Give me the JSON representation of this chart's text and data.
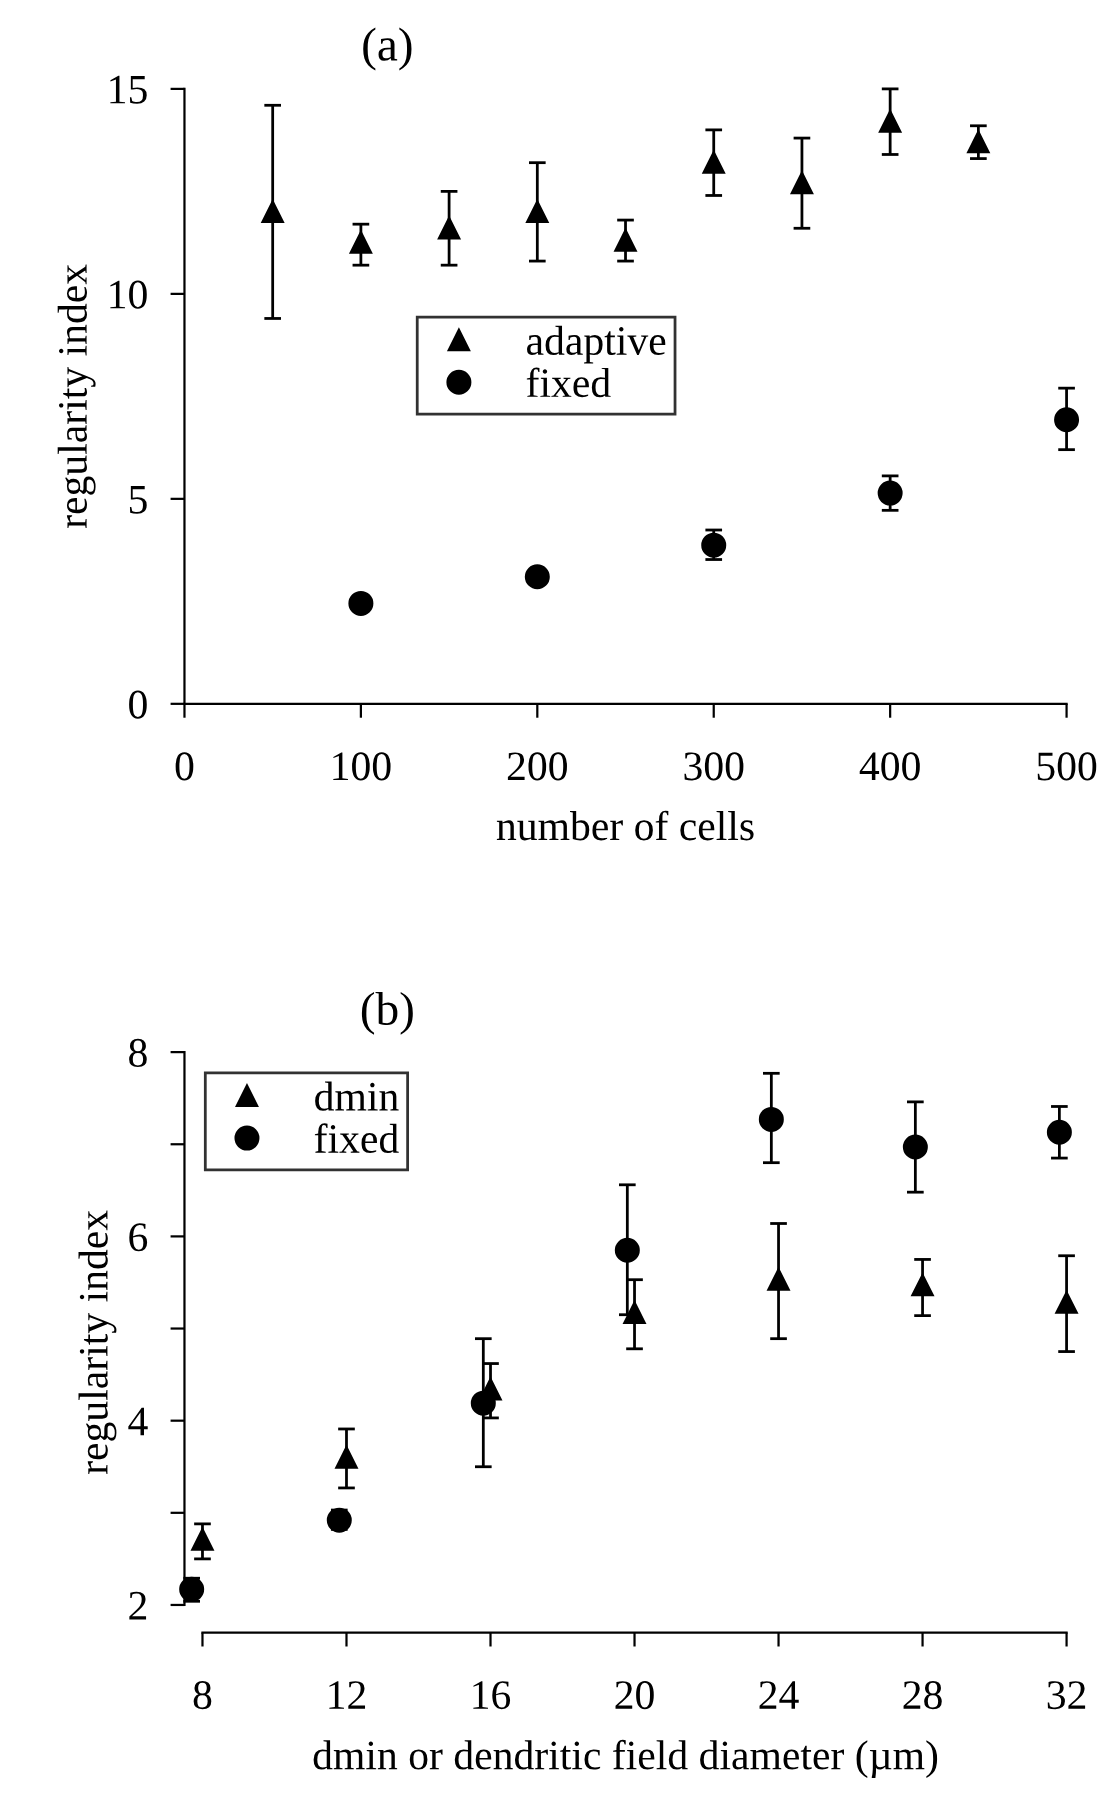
{
  "chart_data": [
    {
      "type": "scatter",
      "title": "(a)",
      "xlabel": "number of cells",
      "ylabel": "regularity index",
      "xlim": [
        0,
        500
      ],
      "xticks": [
        0,
        100,
        200,
        300,
        400,
        500
      ],
      "ylim": [
        0,
        15
      ],
      "yticks": [
        0,
        5,
        10,
        15
      ],
      "grid": false,
      "legend": "center",
      "series": [
        {
          "name": "adaptive",
          "color": "#000000",
          "marker": "triangle",
          "x": [
            50,
            100,
            150,
            200,
            250,
            300,
            350,
            400,
            450
          ],
          "values": [
            12.0,
            11.25,
            11.6,
            12.0,
            11.3,
            13.2,
            12.7,
            14.2,
            13.7
          ],
          "errors": [
            [
              9.4,
              14.6
            ],
            [
              10.7,
              11.7
            ],
            [
              10.7,
              12.5
            ],
            [
              10.8,
              13.2
            ],
            [
              10.8,
              11.8
            ],
            [
              12.4,
              14.0
            ],
            [
              11.6,
              13.8
            ],
            [
              13.4,
              15.0
            ],
            [
              13.3,
              14.1
            ]
          ]
        },
        {
          "name": "fixed",
          "color": "#000000",
          "marker": "circle",
          "x": [
            100,
            200,
            300,
            400,
            500
          ],
          "values": [
            2.45,
            3.1,
            3.87,
            5.14,
            6.93
          ],
          "errors": [
            [
              2.3,
              2.6
            ],
            [
              2.95,
              3.25
            ],
            [
              3.52,
              4.24
            ],
            [
              4.72,
              5.56
            ],
            [
              6.2,
              7.7
            ]
          ]
        }
      ]
    },
    {
      "type": "scatter",
      "title": "(b)",
      "xlabel": "dmin or dendritic field diameter (µm)",
      "ylabel": "regularity index",
      "xlim": [
        7.5,
        32
      ],
      "xticks": [
        8,
        12,
        16,
        20,
        24,
        28,
        32
      ],
      "ylim": [
        1.7,
        8
      ],
      "yticks": [
        2,
        {
          "value": 3,
          "label": null
        },
        4,
        {
          "value": 5,
          "label": null
        },
        6,
        {
          "value": 7,
          "label": null
        },
        8
      ],
      "grid": false,
      "legend": "top left",
      "series": [
        {
          "name": "dmin",
          "color": "#000000",
          "marker": "triangle",
          "x": [
            8,
            12,
            16,
            20,
            24,
            28,
            32
          ],
          "values": [
            2.71,
            3.6,
            4.34,
            5.17,
            5.53,
            5.47,
            5.28
          ],
          "errors": [
            [
              2.5,
              2.88
            ],
            [
              3.27,
              3.91
            ],
            [
              4.03,
              4.62
            ],
            [
              4.78,
              5.53
            ],
            [
              4.89,
              6.14
            ],
            [
              5.14,
              5.75
            ],
            [
              4.75,
              5.79
            ]
          ]
        },
        {
          "name": "fixed",
          "color": "#000000",
          "marker": "circle",
          "x": [
            7.7,
            11.8,
            15.8,
            19.8,
            23.8,
            27.8,
            31.8
          ],
          "values": [
            2.17,
            2.92,
            4.19,
            5.85,
            7.27,
            6.97,
            7.13
          ],
          "errors": [
            [
              2.04,
              2.29
            ],
            [
              2.82,
              3.03
            ],
            [
              3.5,
              4.89
            ],
            [
              5.15,
              6.56
            ],
            [
              6.8,
              7.77
            ],
            [
              6.48,
              7.46
            ],
            [
              6.85,
              7.41
            ]
          ]
        }
      ]
    }
  ]
}
